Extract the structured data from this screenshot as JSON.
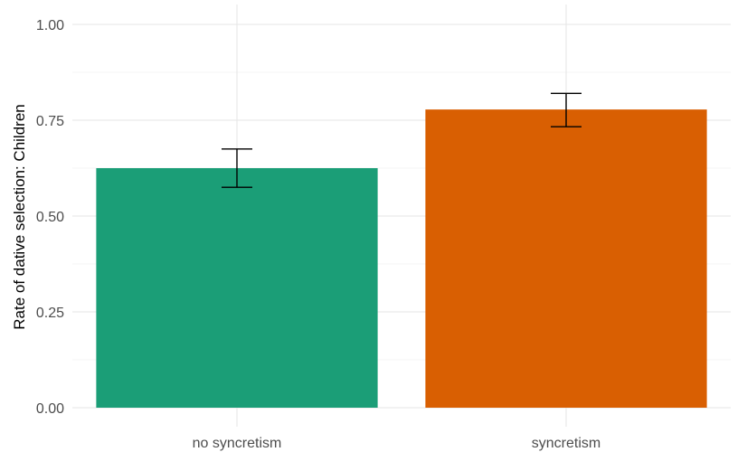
{
  "chart_data": {
    "type": "bar",
    "title": "",
    "xlabel": "",
    "ylabel": "Rate of dative selection: Children",
    "categories": [
      "no syncretism",
      "syncretism"
    ],
    "values": [
      0.625,
      0.778
    ],
    "error_low": [
      0.575,
      0.733
    ],
    "error_high": [
      0.675,
      0.82
    ],
    "colors": [
      "#1b9e77",
      "#d95f02"
    ],
    "ylim": [
      0,
      1
    ],
    "yticks": [
      0,
      0.25,
      0.5,
      0.75,
      1
    ],
    "ytick_labels": [
      "0.00",
      "0.25",
      "0.50",
      "0.75",
      "1.00"
    ],
    "grid": true,
    "legend": "none"
  }
}
